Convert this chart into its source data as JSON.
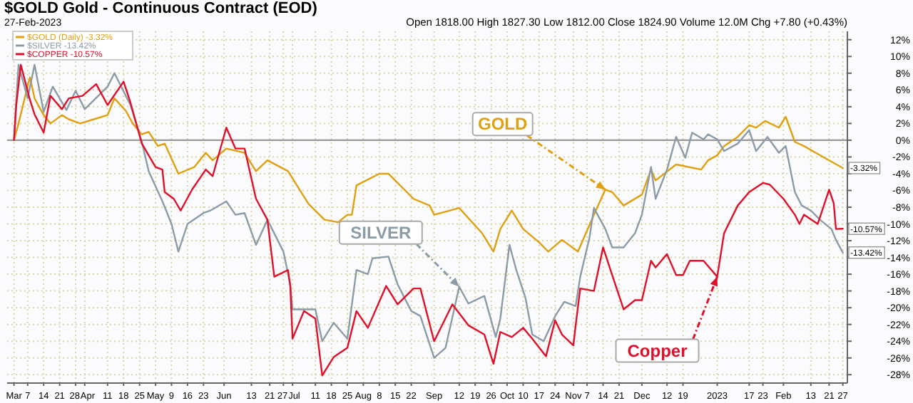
{
  "chart_data": {
    "type": "line",
    "title": "$GOLD Gold - Continuous Contract (EOD)",
    "subtitle": "27-Feb-2023",
    "annotations": [
      "Open 1818.00 High 1827.30 Low 1812.00 Close 1824.90 Volume 12.0M Chg +7.80 (+0.43%)",
      {
        "text": "GOLD",
        "x": "2022-11-15",
        "y": -5.9
      },
      {
        "text": "SILVER",
        "x": "2022-09-12",
        "y": -17.5
      },
      {
        "text": "Copper",
        "x": "2023-01-03",
        "y": -16.3
      },
      {
        "text": "-3.32%",
        "x": "2023-02-27",
        "y": -3.32
      },
      {
        "text": "-10.57%",
        "x": "2023-02-27",
        "y": -10.57
      },
      {
        "text": "-13.42%",
        "x": "2023-02-27",
        "y": -13.42
      }
    ],
    "xlim": [
      "2022-02-26",
      "2023-03-01"
    ],
    "xticks": [
      {
        "value": "2022-03-01",
        "label": "Mar"
      },
      {
        "value": "2022-03-07",
        "label": "7"
      },
      {
        "value": "2022-03-14",
        "label": "14"
      },
      {
        "value": "2022-03-21",
        "label": "21"
      },
      {
        "value": "2022-03-28",
        "label": "28"
      },
      {
        "value": "2022-04-01",
        "label": "Apr"
      },
      {
        "value": "2022-04-11",
        "label": "11"
      },
      {
        "value": "2022-04-18",
        "label": "18"
      },
      {
        "value": "2022-04-25",
        "label": "25"
      },
      {
        "value": "2022-05-02",
        "label": "May"
      },
      {
        "value": "2022-05-09",
        "label": "9"
      },
      {
        "value": "2022-05-16",
        "label": "16"
      },
      {
        "value": "2022-05-23",
        "label": "23"
      },
      {
        "value": "2022-06-01",
        "label": "Jun"
      },
      {
        "value": "2022-06-13",
        "label": "13"
      },
      {
        "value": "2022-06-21",
        "label": "21"
      },
      {
        "value": "2022-06-27",
        "label": "27"
      },
      {
        "value": "2022-07-01",
        "label": "Jul"
      },
      {
        "value": "2022-07-11",
        "label": "11"
      },
      {
        "value": "2022-07-18",
        "label": "18"
      },
      {
        "value": "2022-07-25",
        "label": "25"
      },
      {
        "value": "2022-08-01",
        "label": "Aug"
      },
      {
        "value": "2022-08-08",
        "label": "8"
      },
      {
        "value": "2022-08-15",
        "label": "15"
      },
      {
        "value": "2022-08-22",
        "label": "22"
      },
      {
        "value": "2022-09-01",
        "label": "Sep"
      },
      {
        "value": "2022-09-12",
        "label": "12"
      },
      {
        "value": "2022-09-19",
        "label": "19"
      },
      {
        "value": "2022-09-26",
        "label": "26"
      },
      {
        "value": "2022-10-03",
        "label": "Oct"
      },
      {
        "value": "2022-10-10",
        "label": "10"
      },
      {
        "value": "2022-10-17",
        "label": "17"
      },
      {
        "value": "2022-10-24",
        "label": "24"
      },
      {
        "value": "2022-11-01",
        "label": "Nov"
      },
      {
        "value": "2022-11-07",
        "label": "7"
      },
      {
        "value": "2022-11-14",
        "label": "14"
      },
      {
        "value": "2022-11-21",
        "label": "21"
      },
      {
        "value": "2022-12-01",
        "label": "Dec"
      },
      {
        "value": "2022-12-12",
        "label": "12"
      },
      {
        "value": "2022-12-19",
        "label": "19"
      },
      {
        "value": "2023-01-03",
        "label": "2023"
      },
      {
        "value": "2023-01-17",
        "label": "17"
      },
      {
        "value": "2023-01-23",
        "label": "23"
      },
      {
        "value": "2023-02-01",
        "label": "Feb"
      },
      {
        "value": "2023-02-13",
        "label": "13"
      },
      {
        "value": "2023-02-21",
        "label": "21"
      },
      {
        "value": "2023-02-27",
        "label": "27"
      }
    ],
    "ylim": [
      -29,
      13
    ],
    "yticks": [
      {
        "value": 12,
        "label": "12%"
      },
      {
        "value": 10,
        "label": "10%"
      },
      {
        "value": 8,
        "label": "8%"
      },
      {
        "value": 6,
        "label": "6%"
      },
      {
        "value": 4,
        "label": "4%"
      },
      {
        "value": 2,
        "label": "2%"
      },
      {
        "value": 0,
        "label": "0%"
      },
      {
        "value": -2,
        "label": "-2%"
      },
      {
        "value": -4,
        "label": "-4%"
      },
      {
        "value": -6,
        "label": "-6%"
      },
      {
        "value": -8,
        "label": "-8%"
      },
      {
        "value": -10,
        "label": "-10%"
      },
      {
        "value": -12,
        "label": "-12%"
      },
      {
        "value": -14,
        "label": "-14%"
      },
      {
        "value": -16,
        "label": "-16%"
      },
      {
        "value": -18,
        "label": "-18%"
      },
      {
        "value": -20,
        "label": "-20%"
      },
      {
        "value": -22,
        "label": "-22%"
      },
      {
        "value": -24,
        "label": "-24%"
      },
      {
        "value": -26,
        "label": "-26%"
      },
      {
        "value": -28,
        "label": "-28%"
      }
    ],
    "grid": true,
    "legend": "top left",
    "marker": "none",
    "line_style": "solid",
    "ref_lines": [
      {
        "axis": "y",
        "value": 0,
        "color": "#999999"
      }
    ],
    "series": [
      {
        "name": "$GOLD (Daily) -3.32%",
        "color": "#e0a010",
        "x": [
          "2022-03-01",
          "2022-03-03",
          "2022-03-07",
          "2022-03-08",
          "2022-03-10",
          "2022-03-14",
          "2022-03-17",
          "2022-03-22",
          "2022-03-25",
          "2022-03-30",
          "2022-04-05",
          "2022-04-11",
          "2022-04-14",
          "2022-04-19",
          "2022-04-22",
          "2022-04-26",
          "2022-04-29",
          "2022-05-03",
          "2022-05-06",
          "2022-05-12",
          "2022-05-19",
          "2022-05-24",
          "2022-05-27",
          "2022-06-02",
          "2022-06-10",
          "2022-06-15",
          "2022-06-20",
          "2022-06-29",
          "2022-07-08",
          "2022-07-15",
          "2022-07-21",
          "2022-07-25",
          "2022-07-27",
          "2022-07-29",
          "2022-08-08",
          "2022-08-12",
          "2022-08-23",
          "2022-08-30",
          "2022-09-01",
          "2022-09-12",
          "2022-09-22",
          "2022-09-27",
          "2022-09-30",
          "2022-10-05",
          "2022-10-10",
          "2022-10-17",
          "2022-10-21",
          "2022-10-27",
          "2022-11-03",
          "2022-11-10",
          "2022-11-15",
          "2022-11-18",
          "2022-11-23",
          "2022-12-01",
          "2022-12-05",
          "2022-12-07",
          "2022-12-16",
          "2022-12-27",
          "2022-12-30",
          "2023-01-03",
          "2023-01-06",
          "2023-01-12",
          "2023-01-17",
          "2023-01-20",
          "2023-01-24",
          "2023-01-30",
          "2023-02-02",
          "2023-02-06",
          "2023-02-10",
          "2023-02-17",
          "2023-02-27"
        ],
        "values": [
          0,
          2,
          6.5,
          7.5,
          5,
          3,
          2,
          3,
          2.5,
          2,
          2.5,
          3,
          5,
          3.5,
          2,
          0.7,
          1,
          -0.7,
          -0.4,
          -4,
          -3.2,
          -1.5,
          -2.4,
          -1,
          -1.5,
          -3.7,
          -2.4,
          -3.7,
          -7.6,
          -9.5,
          -9.8,
          -8.9,
          -8.9,
          -5.4,
          -4,
          -4,
          -7,
          -7.8,
          -8.9,
          -8.1,
          -11.1,
          -13.3,
          -10.6,
          -8.4,
          -10.6,
          -12.2,
          -13.3,
          -11.9,
          -13.3,
          -8.9,
          -5.9,
          -6.2,
          -7.8,
          -6.5,
          -3.5,
          -4.8,
          -2.9,
          -3.5,
          -2.4,
          -1.8,
          -0.7,
          0.4,
          1.8,
          1.5,
          2.3,
          1.5,
          2.8,
          -0.2,
          -0.7,
          -1.8,
          -3.32
        ]
      },
      {
        "name": "$SILVER -13.42%",
        "color": "#8c9ca6",
        "x": [
          "2022-03-01",
          "2022-03-02",
          "2022-03-03",
          "2022-03-07",
          "2022-03-10",
          "2022-03-14",
          "2022-03-18",
          "2022-03-24",
          "2022-03-28",
          "2022-04-01",
          "2022-04-11",
          "2022-04-14",
          "2022-04-21",
          "2022-04-26",
          "2022-04-29",
          "2022-05-05",
          "2022-05-09",
          "2022-05-12",
          "2022-05-16",
          "2022-05-23",
          "2022-05-26",
          "2022-06-02",
          "2022-06-06",
          "2022-06-10",
          "2022-06-15",
          "2022-06-20",
          "2022-06-27",
          "2022-06-30",
          "2022-07-01",
          "2022-07-11",
          "2022-07-14",
          "2022-07-19",
          "2022-07-25",
          "2022-07-29",
          "2022-08-03",
          "2022-08-05",
          "2022-08-12",
          "2022-08-16",
          "2022-08-22",
          "2022-08-26",
          "2022-09-01",
          "2022-09-06",
          "2022-09-12",
          "2022-09-16",
          "2022-09-23",
          "2022-09-28",
          "2022-09-30",
          "2022-10-04",
          "2022-10-07",
          "2022-10-11",
          "2022-10-14",
          "2022-10-19",
          "2022-10-24",
          "2022-10-28",
          "2022-11-02",
          "2022-11-04",
          "2022-11-08",
          "2022-11-10",
          "2022-11-15",
          "2022-11-18",
          "2022-11-23",
          "2022-11-28",
          "2022-12-01",
          "2022-12-05",
          "2022-12-07",
          "2022-12-12",
          "2022-12-16",
          "2022-12-20",
          "2022-12-23",
          "2022-12-28",
          "2022-12-30",
          "2023-01-03",
          "2023-01-06",
          "2023-01-12",
          "2023-01-17",
          "2023-01-20",
          "2023-01-25",
          "2023-01-30",
          "2023-02-02",
          "2023-02-06",
          "2023-02-09",
          "2023-02-13",
          "2023-02-17",
          "2023-02-22",
          "2023-02-24",
          "2023-02-27"
        ],
        "values": [
          0,
          4.8,
          9,
          5,
          9,
          3.4,
          6.4,
          3.6,
          5.9,
          3.7,
          6.4,
          8,
          4.2,
          -0.2,
          -3.7,
          -7.3,
          -10,
          -13.3,
          -10,
          -8.7,
          -8.4,
          -7.3,
          -8.9,
          -8.7,
          -12.5,
          -9.5,
          -13.3,
          -17.2,
          -20.2,
          -20.2,
          -24,
          -21.8,
          -23.7,
          -15.5,
          -16,
          -14.1,
          -13.9,
          -17.2,
          -20.4,
          -21,
          -26,
          -24.8,
          -17.5,
          -19.5,
          -18.6,
          -23.5,
          -21.3,
          -12.5,
          -15.5,
          -18.8,
          -23.2,
          -24,
          -21,
          -19.3,
          -19.8,
          -16.3,
          -11.7,
          -8.1,
          -10.6,
          -12.8,
          -12.8,
          -11.1,
          -8.9,
          -3.2,
          -7,
          -3.5,
          0.4,
          -2.1,
          0.9,
          0.1,
          0.7,
          0.1,
          -1.3,
          -0.4,
          1.2,
          -1.3,
          0.4,
          -1.5,
          -0.7,
          -6.2,
          -7.8,
          -8.4,
          -9.5,
          -10.6,
          -11.9,
          -13.42
        ]
      },
      {
        "name": "$COPPER -10.57%",
        "color": "#e0102a",
        "x": [
          "2022-03-01",
          "2022-03-02",
          "2022-03-04",
          "2022-03-08",
          "2022-03-10",
          "2022-03-14",
          "2022-03-17",
          "2022-03-22",
          "2022-03-25",
          "2022-03-31",
          "2022-04-06",
          "2022-04-11",
          "2022-04-18",
          "2022-04-21",
          "2022-04-26",
          "2022-05-02",
          "2022-05-05",
          "2022-05-06",
          "2022-05-10",
          "2022-05-13",
          "2022-05-18",
          "2022-05-24",
          "2022-05-27",
          "2022-06-02",
          "2022-06-06",
          "2022-06-10",
          "2022-06-15",
          "2022-06-20",
          "2022-06-23",
          "2022-06-29",
          "2022-06-30",
          "2022-07-01",
          "2022-07-06",
          "2022-07-11",
          "2022-07-14",
          "2022-07-19",
          "2022-07-25",
          "2022-07-29",
          "2022-08-03",
          "2022-08-11",
          "2022-08-16",
          "2022-08-23",
          "2022-08-26",
          "2022-09-01",
          "2022-09-09",
          "2022-09-16",
          "2022-09-23",
          "2022-09-27",
          "2022-09-30",
          "2022-10-05",
          "2022-10-10",
          "2022-10-14",
          "2022-10-20",
          "2022-10-24",
          "2022-10-27",
          "2022-11-01",
          "2022-11-02",
          "2022-11-04",
          "2022-11-10",
          "2022-11-14",
          "2022-11-18",
          "2022-11-23",
          "2022-11-28",
          "2022-12-01",
          "2022-12-05",
          "2022-12-07",
          "2022-12-12",
          "2022-12-16",
          "2022-12-19",
          "2022-12-22",
          "2022-12-28",
          "2023-01-03",
          "2023-01-06",
          "2023-01-12",
          "2023-01-17",
          "2023-01-23",
          "2023-01-26",
          "2023-02-01",
          "2023-02-06",
          "2023-02-08",
          "2023-02-10",
          "2023-02-16",
          "2023-02-21",
          "2023-02-23",
          "2023-02-24",
          "2023-02-27"
        ],
        "values": [
          0,
          4.2,
          9,
          4.8,
          3.1,
          0.9,
          5.3,
          3.7,
          5,
          5.3,
          6.7,
          4.2,
          7,
          4.5,
          -0.4,
          -3.2,
          -3.5,
          -6.2,
          -7,
          -8.4,
          -5.9,
          -3.5,
          -4.3,
          1.5,
          -1,
          -1,
          -7,
          -9.5,
          -16.3,
          -15.5,
          -17.4,
          -23.7,
          -20.4,
          -21.3,
          -28.1,
          -25.9,
          -24.8,
          -20.4,
          -22.4,
          -17.4,
          -19.6,
          -17.7,
          -17.7,
          -24,
          -19.6,
          -22.1,
          -23.2,
          -26.7,
          -22.9,
          -23.5,
          -22.4,
          -23.7,
          -25.8,
          -21.5,
          -23.2,
          -24.5,
          -22.1,
          -17.7,
          -18,
          -12.8,
          -16.1,
          -20.2,
          -19.1,
          -19.1,
          -14.4,
          -15.2,
          -13.6,
          -16.1,
          -16.1,
          -14.4,
          -14.4,
          -16.3,
          -11.1,
          -7.8,
          -6.2,
          -5.1,
          -5.3,
          -7,
          -8.9,
          -10,
          -8.9,
          -10,
          -5.9,
          -7.5,
          -10.6,
          -10.57
        ]
      }
    ]
  }
}
